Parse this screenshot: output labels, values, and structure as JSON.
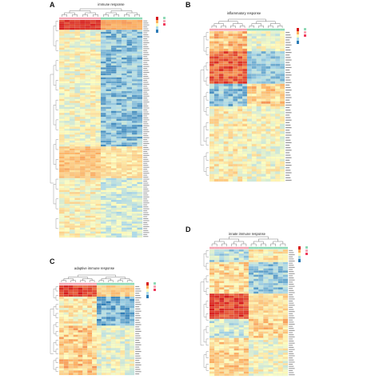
{
  "colors": {
    "heat_high": "#d7191c",
    "heat_mid_high": "#fdae61",
    "heat_mid": "#ffffbf",
    "heat_mid_low": "#abd9e9",
    "heat_low": "#2c7bb6",
    "group_control": "#f4a6b4",
    "group_treated": "#8fd9b6",
    "group_xmg": "#ef3b5c",
    "group_red": "#d7191c"
  },
  "chart_data": [
    {
      "type": "heatmap",
      "panel": "A",
      "title": "immune response",
      "legend": {
        "title": "group",
        "entries": [
          "",
          "",
          ""
        ],
        "scale_ticks": [
          "",
          "",
          "",
          "",
          ""
        ]
      },
      "columns": 16,
      "group_split": 8,
      "rows": 110,
      "pattern": "top_red_left_then_blue_right_mid_yellow",
      "row_labels": []
    },
    {
      "type": "heatmap",
      "panel": "B",
      "title": "inflammatory response",
      "legend": {
        "title": "group",
        "entries": [
          "",
          "",
          ""
        ],
        "scale_ticks": [
          "",
          "",
          "",
          "",
          ""
        ]
      },
      "columns": 16,
      "group_split": 8,
      "rows": 60,
      "pattern": "red_left_blue_right",
      "row_labels": []
    },
    {
      "type": "heatmap",
      "panel": "C",
      "title": "adaptive immune response",
      "legend": {
        "title": "group",
        "entries": [
          "",
          "",
          ""
        ],
        "scale_ticks": [
          "",
          "",
          "",
          "",
          ""
        ]
      },
      "columns": 16,
      "group_split": 8,
      "rows": 40,
      "pattern": "top_red_left_then_blue_right",
      "row_labels": []
    },
    {
      "type": "heatmap",
      "panel": "D",
      "title": "innate immune response",
      "legend": {
        "title": "group",
        "entries": [
          "",
          "",
          ""
        ],
        "scale_ticks": [
          "",
          "",
          "",
          "",
          ""
        ]
      },
      "columns": 16,
      "group_split": 8,
      "rows": 60,
      "pattern": "mixed_red_blue_blocks",
      "row_labels": []
    }
  ],
  "panel_letters": [
    "A",
    "B",
    "C",
    "D"
  ]
}
